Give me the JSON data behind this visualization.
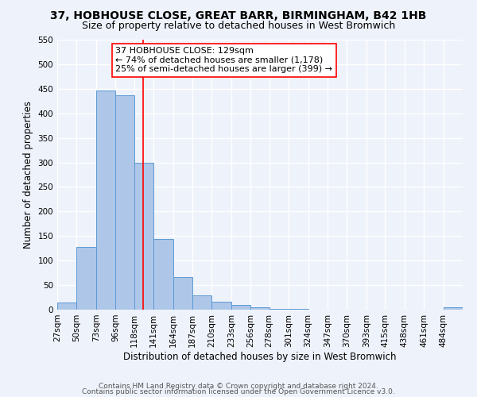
{
  "title": "37, HOBHOUSE CLOSE, GREAT BARR, BIRMINGHAM, B42 1HB",
  "subtitle": "Size of property relative to detached houses in West Bromwich",
  "xlabel": "Distribution of detached houses by size in West Bromwich",
  "ylabel": "Number of detached properties",
  "bin_labels": [
    "27sqm",
    "50sqm",
    "73sqm",
    "96sqm",
    "118sqm",
    "141sqm",
    "164sqm",
    "187sqm",
    "210sqm",
    "233sqm",
    "256sqm",
    "278sqm",
    "301sqm",
    "324sqm",
    "347sqm",
    "370sqm",
    "393sqm",
    "415sqm",
    "438sqm",
    "461sqm",
    "484sqm"
  ],
  "bin_edges": [
    27,
    50,
    73,
    96,
    118,
    141,
    164,
    187,
    210,
    233,
    256,
    278,
    301,
    324,
    347,
    370,
    393,
    415,
    438,
    461,
    484,
    507
  ],
  "bar_heights": [
    15,
    128,
    447,
    437,
    299,
    144,
    67,
    29,
    16,
    9,
    5,
    2,
    1,
    0,
    0,
    0,
    0,
    0,
    0,
    0,
    5
  ],
  "bar_color": "#aec6e8",
  "bar_edge_color": "#5b9bd5",
  "vline_x": 129,
  "vline_color": "red",
  "annotation_text": "37 HOBHOUSE CLOSE: 129sqm\n← 74% of detached houses are smaller (1,178)\n25% of semi-detached houses are larger (399) →",
  "annotation_box_color": "white",
  "annotation_box_edgecolor": "red",
  "ylim": [
    0,
    550
  ],
  "yticks": [
    0,
    50,
    100,
    150,
    200,
    250,
    300,
    350,
    400,
    450,
    500,
    550
  ],
  "footer1": "Contains HM Land Registry data © Crown copyright and database right 2024.",
  "footer2": "Contains public sector information licensed under the Open Government Licence v3.0.",
  "bg_color": "#eef2fb",
  "grid_color": "white",
  "title_fontsize": 10,
  "subtitle_fontsize": 9,
  "label_fontsize": 8.5,
  "tick_fontsize": 7.5,
  "annotation_fontsize": 8,
  "footer_fontsize": 6.5
}
